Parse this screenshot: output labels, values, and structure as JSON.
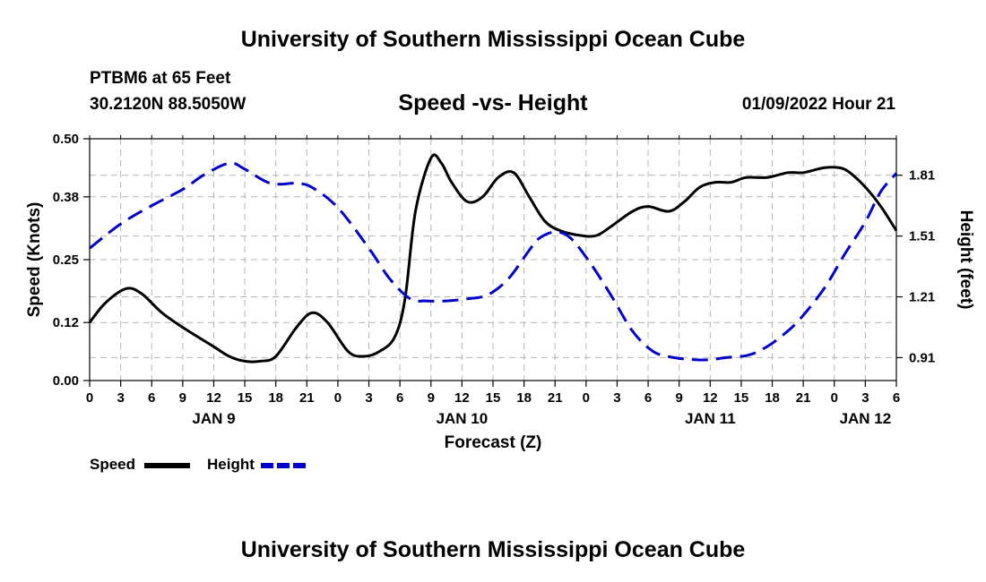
{
  "header": {
    "title": "University of Southern Mississippi Ocean Cube",
    "station": "PTBM6 at 65 Feet",
    "coords": "30.2120N  88.5050W",
    "subtitle": "Speed -vs- Height",
    "datetime": "01/09/2022 Hour 21"
  },
  "footer": {
    "title": "University of Southern Mississippi Ocean Cube"
  },
  "chart_data": {
    "type": "line",
    "title": "Speed -vs- Height",
    "xlabel": "Forecast (Z)",
    "ylabel": "Speed (Knots)",
    "y2label": "Height (feet)",
    "x_range": [
      0,
      78
    ],
    "ylim": [
      0,
      0.5
    ],
    "y2lim": [
      0.797,
      1.99
    ],
    "y_ticks": [
      0.0,
      0.12,
      0.25,
      0.38,
      0.5
    ],
    "y_tick_labels": [
      "0.00",
      "0.12",
      "0.25",
      "0.38",
      "0.50"
    ],
    "y2_ticks": [
      0.91,
      1.21,
      1.51,
      1.81
    ],
    "y2_tick_labels": [
      "0.91",
      "1.21",
      "1.51",
      "1.81"
    ],
    "x_ticks": [
      0,
      3,
      6,
      9,
      12,
      15,
      18,
      21,
      24,
      27,
      30,
      33,
      36,
      39,
      42,
      45,
      48,
      51,
      54,
      57,
      60,
      63,
      66,
      69,
      72,
      75,
      78
    ],
    "x_tick_labels": [
      "0",
      "3",
      "6",
      "9",
      "12",
      "15",
      "18",
      "21",
      "0",
      "3",
      "6",
      "9",
      "12",
      "15",
      "18",
      "21",
      "0",
      "3",
      "6",
      "9",
      "12",
      "15",
      "18",
      "21",
      "0",
      "3",
      "6"
    ],
    "day_labels": [
      {
        "x": 12,
        "label": "JAN 9"
      },
      {
        "x": 36,
        "label": "JAN 10"
      },
      {
        "x": 60,
        "label": "JAN 11"
      },
      {
        "x": 75,
        "label": "JAN 12"
      }
    ],
    "grid": true,
    "legend": [
      "Speed",
      "Height"
    ],
    "legend_position": "bottom-left",
    "series": [
      {
        "name": "Speed",
        "axis": "left",
        "color": "#000000",
        "dash": "solid",
        "x": [
          0,
          1.5,
          3.5,
          5,
          7,
          9,
          12,
          13.5,
          15,
          16.5,
          18,
          20,
          21.5,
          23,
          25,
          26.5,
          28,
          29.5,
          30.5,
          31.5,
          33,
          34,
          35,
          36.5,
          38,
          39.5,
          41,
          42.5,
          44,
          45.5,
          47.5,
          49,
          50.5,
          52.5,
          54,
          56,
          57.5,
          59,
          60.5,
          62,
          63.5,
          65.5,
          67.5,
          69,
          71,
          72.5,
          73.5,
          75,
          76.5,
          78
        ],
        "y": [
          0.12,
          0.16,
          0.19,
          0.18,
          0.14,
          0.11,
          0.07,
          0.05,
          0.04,
          0.04,
          0.05,
          0.11,
          0.14,
          0.12,
          0.06,
          0.05,
          0.06,
          0.09,
          0.17,
          0.35,
          0.46,
          0.45,
          0.41,
          0.37,
          0.38,
          0.42,
          0.43,
          0.38,
          0.33,
          0.31,
          0.3,
          0.3,
          0.32,
          0.35,
          0.36,
          0.35,
          0.37,
          0.4,
          0.41,
          0.41,
          0.42,
          0.42,
          0.43,
          0.43,
          0.44,
          0.44,
          0.43,
          0.4,
          0.36,
          0.31
        ]
      },
      {
        "name": "Height",
        "axis": "right",
        "color": "#0000cc",
        "dash": "dashed",
        "x": [
          0,
          3,
          6,
          9,
          11,
          13.5,
          15,
          17.5,
          20,
          21.5,
          24,
          27,
          29,
          31,
          32.5,
          34.5,
          36.5,
          38.5,
          40.5,
          42.5,
          43.5,
          45,
          46.5,
          48.5,
          50.5,
          52.5,
          54.5,
          56.5,
          58.5,
          60,
          61.5,
          63.5,
          65,
          66.5,
          68.5,
          71,
          73,
          75,
          76.5,
          78
        ],
        "y": [
          1.45,
          1.57,
          1.66,
          1.74,
          1.81,
          1.87,
          1.84,
          1.77,
          1.77,
          1.75,
          1.65,
          1.45,
          1.3,
          1.2,
          1.19,
          1.19,
          1.2,
          1.22,
          1.3,
          1.44,
          1.5,
          1.53,
          1.5,
          1.37,
          1.21,
          1.04,
          0.94,
          0.91,
          0.9,
          0.9,
          0.91,
          0.92,
          0.95,
          1.0,
          1.09,
          1.25,
          1.42,
          1.58,
          1.73,
          1.82
        ]
      }
    ]
  }
}
